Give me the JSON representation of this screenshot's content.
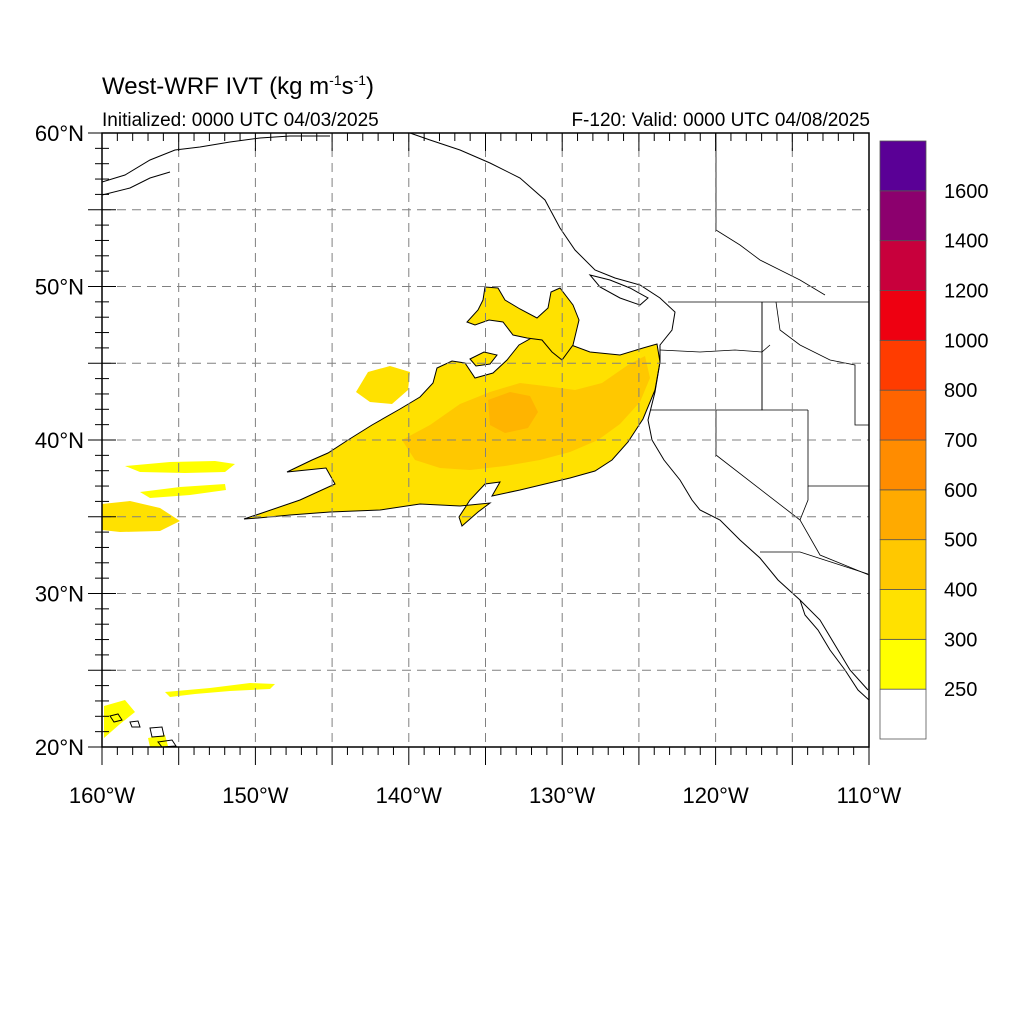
{
  "title": {
    "main": "West-WRF IVT (kg m",
    "exp1": "-1",
    "mid": "s",
    "exp2": "-1",
    "end": ")"
  },
  "subtitle_left": "Initialized: 0000 UTC 04/03/2025",
  "subtitle_right": "F-120: Valid: 0000 UTC 04/08/2025",
  "map": {
    "lon_range": [
      -160,
      -110
    ],
    "lat_range": [
      20,
      60
    ],
    "grid_major_lon": [
      -155,
      -150,
      -145,
      -140,
      -135,
      -130,
      -125,
      -120,
      -115
    ],
    "grid_major_lat": [
      25,
      30,
      35,
      40,
      45,
      50,
      55
    ],
    "lon_labels": [
      {
        "lon": -160,
        "label": "160°W"
      },
      {
        "lon": -150,
        "label": "150°W"
      },
      {
        "lon": -140,
        "label": "140°W"
      },
      {
        "lon": -130,
        "label": "130°W"
      },
      {
        "lon": -120,
        "label": "120°W"
      },
      {
        "lon": -110,
        "label": "110°W"
      }
    ],
    "lat_labels": [
      {
        "lat": 60,
        "label": "60°N"
      },
      {
        "lat": 50,
        "label": "50°N"
      },
      {
        "lat": 40,
        "label": "40°N"
      },
      {
        "lat": 30,
        "label": "30°N"
      },
      {
        "lat": 20,
        "label": "20°N"
      }
    ],
    "grid_on": true
  },
  "colorbar": {
    "levels": [
      250,
      300,
      400,
      500,
      600,
      700,
      800,
      1000,
      1200,
      1400,
      1600
    ],
    "colors": [
      "#ffffff",
      "#ffff00",
      "#ffe100",
      "#ffc800",
      "#ffaa00",
      "#ff8c00",
      "#ff6400",
      "#ff3c00",
      "#ee0011",
      "#c8003c",
      "#8c006e",
      "#5a0096"
    ]
  }
}
